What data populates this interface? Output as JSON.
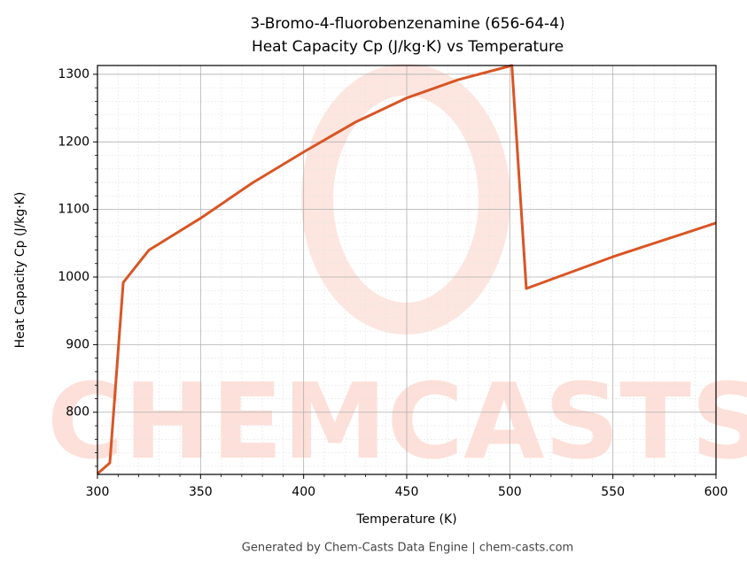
{
  "chart_data": {
    "type": "line",
    "title": "3-Bromo-4-fluorobenzenamine (656-64-4)",
    "subtitle": "Heat Capacity Cp (J/kg·K) vs Temperature",
    "x_label": "Temperature (K)",
    "y_label": "Heat Capacity Cp (J/kg·K)",
    "footer": "Generated by Chem-Casts Data Engine | chem-casts.com",
    "watermark": "CHEMCASTS",
    "x": [
      300,
      306,
      312.5,
      325,
      350,
      375,
      400,
      425,
      450,
      475,
      501,
      508,
      550,
      600
    ],
    "series": [
      {
        "name": "Cp",
        "color": "#d95525",
        "values": [
          709,
          725,
          992,
          1040,
          1087,
          1139,
          1185,
          1229,
          1265,
          1292,
          1313,
          983,
          1030,
          1080
        ]
      }
    ],
    "xlim": [
      300,
      600
    ],
    "ylim": [
      708,
      1313
    ],
    "xticks": [
      300,
      350,
      400,
      450,
      500,
      550,
      600
    ],
    "yticks": [
      800,
      900,
      1000,
      1100,
      1200,
      1300
    ],
    "xminorticks": [
      310,
      320,
      330,
      340,
      360,
      370,
      380,
      390,
      410,
      420,
      430,
      440,
      460,
      470,
      480,
      490,
      510,
      520,
      530,
      540,
      560,
      570,
      580,
      590
    ],
    "yminorticks": [
      720,
      740,
      760,
      780,
      820,
      840,
      860,
      880,
      920,
      940,
      960,
      980,
      1020,
      1040,
      1060,
      1080,
      1120,
      1140,
      1160,
      1180,
      1220,
      1240,
      1260,
      1280
    ],
    "grid": true
  }
}
